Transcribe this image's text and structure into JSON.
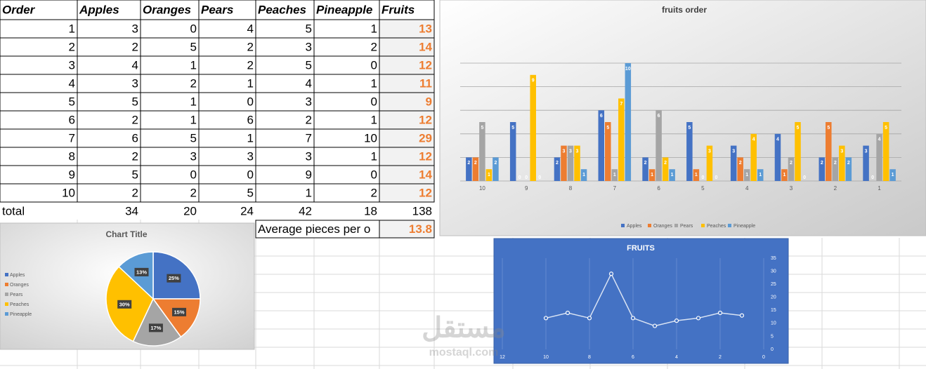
{
  "table": {
    "headers": [
      "Order",
      "Apples",
      "Oranges",
      "Pears",
      "Peaches",
      "Pineapple",
      "Fruits"
    ],
    "rows": [
      [
        1,
        3,
        0,
        4,
        5,
        1,
        13
      ],
      [
        2,
        2,
        5,
        2,
        3,
        2,
        14
      ],
      [
        3,
        4,
        1,
        2,
        5,
        0,
        12
      ],
      [
        4,
        3,
        2,
        1,
        4,
        1,
        11
      ],
      [
        5,
        5,
        1,
        0,
        3,
        0,
        9
      ],
      [
        6,
        2,
        1,
        6,
        2,
        1,
        12
      ],
      [
        7,
        6,
        5,
        1,
        7,
        10,
        29
      ],
      [
        8,
        2,
        3,
        3,
        3,
        1,
        12
      ],
      [
        9,
        5,
        0,
        0,
        9,
        0,
        14
      ],
      [
        10,
        2,
        2,
        5,
        1,
        2,
        12
      ]
    ],
    "total": [
      "total",
      34,
      20,
      24,
      42,
      18,
      138
    ],
    "average": {
      "label": "Average pieces per o",
      "value": 13.8
    }
  },
  "watermark": [
    "مستقل",
    "mostaql.com"
  ],
  "chart_data": [
    {
      "type": "bar",
      "title": "fruits order",
      "categories": [
        "10",
        "9",
        "8",
        "7",
        "6",
        "5",
        "4",
        "3",
        "2",
        "1"
      ],
      "series": [
        {
          "name": "Apples",
          "color": "#4472c4",
          "values": [
            2,
            5,
            2,
            6,
            2,
            5,
            3,
            4,
            2,
            3
          ]
        },
        {
          "name": "Oranges",
          "color": "#ed7d31",
          "values": [
            2,
            0,
            3,
            5,
            1,
            1,
            2,
            1,
            5,
            0
          ]
        },
        {
          "name": "Pears",
          "color": "#a5a5a5",
          "values": [
            5,
            0,
            3,
            1,
            6,
            0,
            1,
            2,
            2,
            4
          ]
        },
        {
          "name": "Peaches",
          "color": "#ffc000",
          "values": [
            1,
            9,
            3,
            7,
            2,
            3,
            4,
            5,
            3,
            5
          ]
        },
        {
          "name": "Pineapple",
          "color": "#5b9bd5",
          "values": [
            2,
            0,
            1,
            10,
            1,
            0,
            1,
            0,
            2,
            1
          ]
        }
      ],
      "ylim": [
        0,
        10
      ],
      "yticks": [
        0,
        2,
        4,
        6,
        8,
        10
      ],
      "grid": true,
      "legend": "bottom"
    },
    {
      "type": "pie",
      "title": "Chart Title",
      "categories": [
        "Apples",
        "Oranges",
        "Pears",
        "Peaches",
        "Pineapple"
      ],
      "values": [
        25,
        15,
        17,
        30,
        13
      ],
      "value_labels": [
        "25%",
        "15%",
        "17%",
        "30%",
        "13%"
      ],
      "colors": [
        "#4472c4",
        "#ed7d31",
        "#a5a5a5",
        "#ffc000",
        "#5b9bd5"
      ],
      "legend": "left"
    },
    {
      "type": "line",
      "title": "FRUITS",
      "x": [
        10,
        9,
        8,
        7,
        6,
        5,
        4,
        3,
        2,
        1
      ],
      "values": [
        12,
        14,
        12,
        29,
        12,
        9,
        11,
        12,
        14,
        13
      ],
      "color": "#ffffff",
      "xlim": [
        12,
        0
      ],
      "xticks": [
        12,
        10,
        8,
        6,
        4,
        2,
        0
      ],
      "ylim": [
        0,
        35
      ],
      "yticks": [
        0,
        5,
        10,
        15,
        20,
        25,
        30,
        35
      ],
      "grid": true
    }
  ]
}
